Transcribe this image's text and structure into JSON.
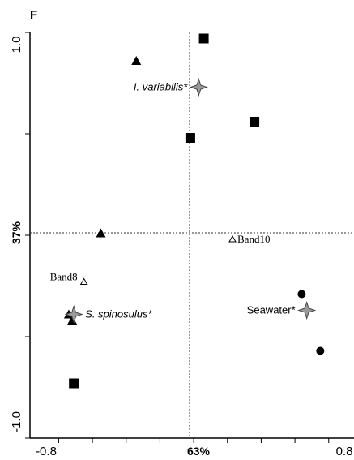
{
  "chart_data": {
    "type": "scatter",
    "panel_label": "F",
    "x_axis_pct": "63%",
    "y_axis_pct": "37%",
    "xlim": [
      -0.8,
      0.8
    ],
    "ylim": [
      -1.0,
      1.0
    ],
    "x_ticks": [
      "-0.8",
      "0.8"
    ],
    "y_ticks": [
      "1.0",
      "-1.0"
    ],
    "series": [
      {
        "marker": "square",
        "points": [
          [
            0.06,
            0.97
          ],
          [
            -0.02,
            0.48
          ],
          [
            0.36,
            0.56
          ],
          [
            -0.71,
            -0.73
          ]
        ]
      },
      {
        "marker": "triangle",
        "points": [
          [
            -0.34,
            0.86
          ],
          [
            -0.55,
            0.01
          ],
          [
            -0.74,
            -0.39
          ],
          [
            -0.72,
            -0.42
          ]
        ]
      },
      {
        "marker": "circle",
        "points": [
          [
            0.64,
            -0.29
          ],
          [
            0.75,
            -0.57
          ]
        ]
      },
      {
        "marker": "open-triangle",
        "points": [
          [
            0.23,
            -0.02
          ],
          [
            -0.65,
            -0.23
          ]
        ]
      },
      {
        "marker": "star",
        "points": [
          [
            0.03,
            0.73
          ],
          [
            -0.71,
            -0.39
          ],
          [
            0.67,
            -0.37
          ]
        ]
      }
    ],
    "annotations": [
      {
        "text": "I. variabilis*",
        "style": "italic-sans",
        "x": 0.03,
        "y": 0.73,
        "anchor": "end"
      },
      {
        "text": "S. spinosulus*",
        "style": "italic-sans",
        "x": -0.71,
        "y": -0.39,
        "anchor": "start"
      },
      {
        "text": "Seawater*",
        "style": "sans",
        "x": 0.67,
        "y": -0.37,
        "anchor": "end"
      },
      {
        "text": "Band10",
        "style": "serif",
        "x": 0.23,
        "y": -0.02,
        "anchor": "start"
      },
      {
        "text": "Band8",
        "style": "serif",
        "x": -0.65,
        "y": -0.23,
        "anchor": "end"
      }
    ],
    "colors": {
      "marker": "#000000",
      "star_fill": "#9a9a9a",
      "reference_line": "#333333"
    }
  }
}
